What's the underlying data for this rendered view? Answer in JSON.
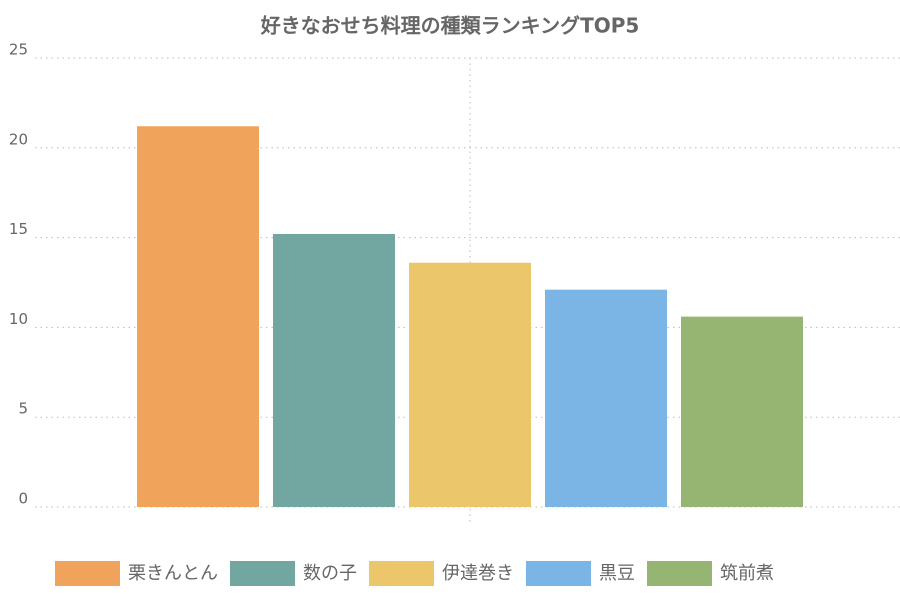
{
  "chart_data": {
    "type": "bar",
    "title": "好きなおせち料理の種類ランキングTOP5",
    "categories": [
      null
    ],
    "series": [
      {
        "name": "栗きんとん",
        "color": "#f0a35a",
        "values": [
          21.2
        ]
      },
      {
        "name": "数の子",
        "color": "#72a6a0",
        "values": [
          15.2
        ]
      },
      {
        "name": "伊達巻き",
        "color": "#ecc66a",
        "values": [
          13.6
        ]
      },
      {
        "name": "黒豆",
        "color": "#7ab5e6",
        "values": [
          12.1
        ]
      },
      {
        "name": "筑前煮",
        "color": "#97b572",
        "values": [
          10.6
        ]
      }
    ],
    "ylim": [
      0,
      25
    ],
    "yticks": [
      0,
      5,
      10,
      15,
      20,
      25
    ],
    "grid": true
  }
}
